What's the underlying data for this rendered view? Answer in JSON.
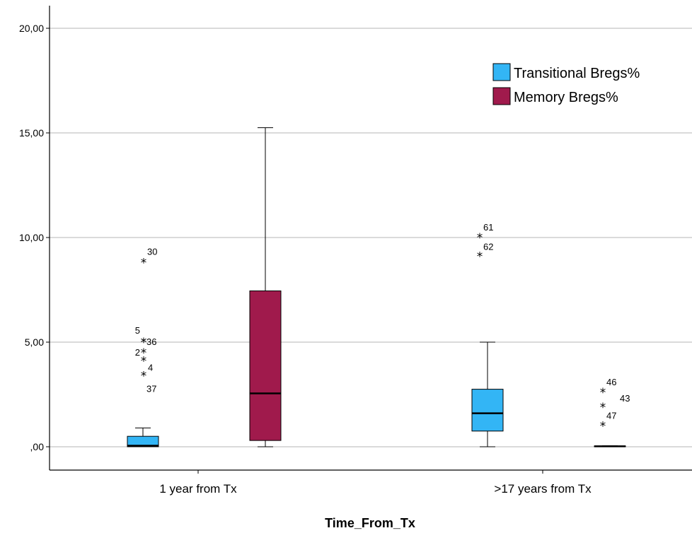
{
  "chart_data": {
    "type": "boxplot",
    "xlabel": "Time_From_Tx",
    "ylabel": "",
    "ylim": [
      -1.1,
      20.8
    ],
    "yticks": [
      {
        "value": 0,
        "label": ",00"
      },
      {
        "value": 5,
        "label": "5,00"
      },
      {
        "value": 10,
        "label": "10,00"
      },
      {
        "value": 15,
        "label": "15,00"
      },
      {
        "value": 20,
        "label": "20,00"
      }
    ],
    "grid": true,
    "legend_position": "top-right",
    "categories": [
      "1 year from Tx",
      ">17 years from Tx"
    ],
    "series": [
      {
        "name": "Transitional Bregs%",
        "color": "#33b5f5",
        "boxes": [
          {
            "min": 0,
            "q1": 0,
            "median": 0.05,
            "q3": 0.5,
            "max": 0.9,
            "outliers": [
              {
                "value": 8.8,
                "label": "30"
              },
              {
                "value": 5.0,
                "label": "5"
              },
              {
                "value": 5.0,
                "label": "36"
              },
              {
                "value": 4.5,
                "label": "2"
              },
              {
                "value": 4.1,
                "label": "4"
              },
              {
                "value": 3.4,
                "label": "37"
              }
            ]
          },
          {
            "min": 0,
            "q1": 0.75,
            "median": 1.6,
            "q3": 2.75,
            "max": 5.0,
            "outliers": [
              {
                "value": 10.0,
                "label": "61"
              },
              {
                "value": 9.1,
                "label": "62"
              }
            ]
          }
        ]
      },
      {
        "name": "Memory Bregs%",
        "color": "#a01a4c",
        "boxes": [
          {
            "min": 0,
            "q1": 0.3,
            "median": 2.55,
            "q3": 7.45,
            "max": 15.25,
            "outliers": []
          },
          {
            "min": 0,
            "q1": 0,
            "median": 0.02,
            "q3": 0.04,
            "max": 0.05,
            "outliers": [
              {
                "value": 2.6,
                "label": "46"
              },
              {
                "value": 1.9,
                "label": "43"
              },
              {
                "value": 1.0,
                "label": "47"
              }
            ]
          }
        ]
      }
    ]
  }
}
